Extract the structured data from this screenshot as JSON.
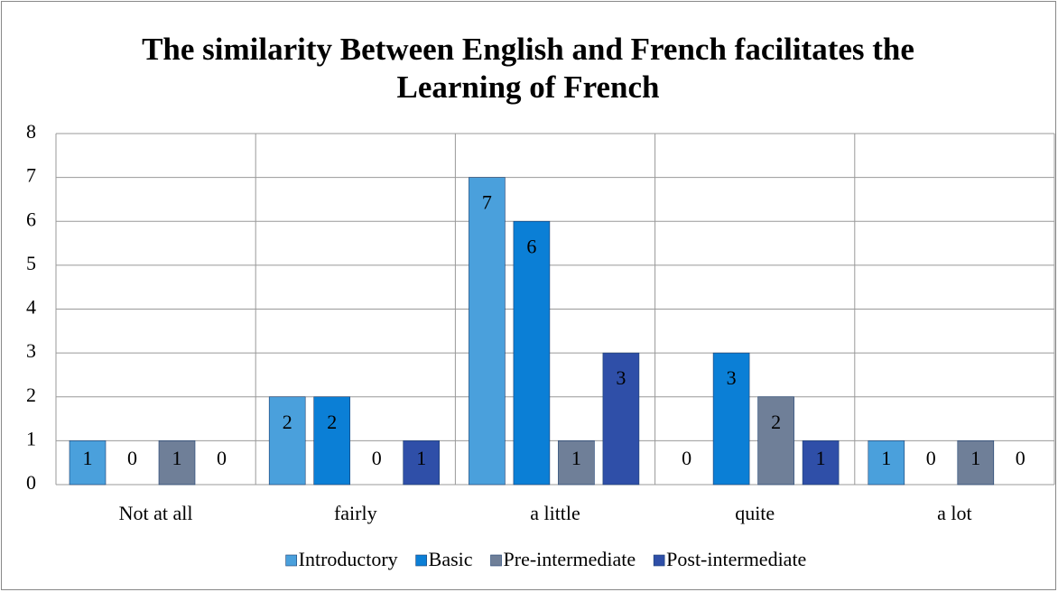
{
  "chart_data": {
    "type": "bar",
    "title": "The similarity Between English and French facilitates the Learning of French",
    "categories": [
      "Not at all",
      "fairly",
      "a little",
      "quite",
      "a lot"
    ],
    "series": [
      {
        "name": "Introductory",
        "color": "#4aa0dc",
        "values": [
          1,
          2,
          7,
          0,
          1
        ]
      },
      {
        "name": "Basic",
        "color": "#0b7fd6",
        "values": [
          0,
          2,
          6,
          3,
          0
        ]
      },
      {
        "name": "Pre-intermediate",
        "color": "#6f7f98",
        "values": [
          1,
          0,
          1,
          2,
          1
        ]
      },
      {
        "name": "Post-intermediate",
        "color": "#2f4fa8",
        "values": [
          0,
          1,
          3,
          1,
          0
        ]
      }
    ],
    "ylim": [
      0,
      8
    ],
    "yticks": [
      0,
      1,
      2,
      3,
      4,
      5,
      6,
      7,
      8
    ],
    "grid": true,
    "legend": "bottom"
  }
}
